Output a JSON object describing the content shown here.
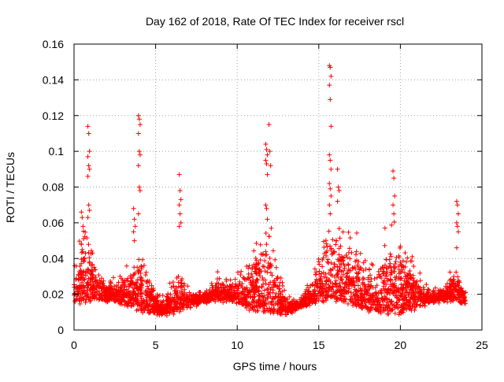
{
  "chart_data": {
    "type": "scatter",
    "title": "Day 162 of 2018, Rate Of TEC Index for receiver rscl",
    "xlabel": "GPS time / hours",
    "ylabel": "ROTI / TECUs",
    "xlim": [
      0,
      25
    ],
    "ylim": [
      0,
      0.16
    ],
    "xticks": [
      0,
      5,
      10,
      15,
      20,
      25
    ],
    "yticks": [
      0,
      0.02,
      0.04,
      0.06,
      0.08,
      0.1,
      0.12,
      0.14,
      0.16
    ],
    "xtick_labels": [
      "0",
      "5",
      "10",
      "15",
      "20",
      "25"
    ],
    "ytick_labels": [
      "0",
      "0.02",
      "0.04",
      "0.06",
      "0.08",
      "0.1",
      "0.12",
      "0.14",
      "0.16"
    ],
    "grid": true,
    "marker": "+",
    "colors": {
      "points": "#ff0000",
      "grid": "#a0a0a0",
      "axes": "#000000"
    },
    "series": [
      {
        "name": "ROTI",
        "description_peaks": "Dense scatter of ROTI values between 0 and 24 h; baseline ~0.005-0.03 TECU/min with isolated spikes",
        "spikes": [
          {
            "x": 0.5,
            "values": [
              0.066,
              0.063,
              0.058,
              0.048,
              0.045
            ]
          },
          {
            "x": 0.9,
            "values": [
              0.114,
              0.11,
              0.1,
              0.097,
              0.092,
              0.09,
              0.086,
              0.07,
              0.067,
              0.063
            ]
          },
          {
            "x": 3.7,
            "values": [
              0.068,
              0.062,
              0.058,
              0.055,
              0.05
            ]
          },
          {
            "x": 4.0,
            "values": [
              0.12,
              0.118,
              0.115,
              0.11,
              0.1,
              0.098,
              0.092,
              0.08,
              0.078,
              0.065
            ]
          },
          {
            "x": 6.5,
            "values": [
              0.087,
              0.078,
              0.073,
              0.07,
              0.065,
              0.06,
              0.058
            ]
          },
          {
            "x": 11.8,
            "values": [
              0.104,
              0.101,
              0.098,
              0.095,
              0.093,
              0.087,
              0.07,
              0.068,
              0.062
            ]
          },
          {
            "x": 12.0,
            "values": [
              0.115,
              0.1,
              0.092
            ]
          },
          {
            "x": 15.7,
            "values": [
              0.148,
              0.147,
              0.142,
              0.137,
              0.129,
              0.114,
              0.098,
              0.095,
              0.09,
              0.082,
              0.079,
              0.075,
              0.07,
              0.065
            ]
          },
          {
            "x": 16.2,
            "values": [
              0.09,
              0.08,
              0.078,
              0.072
            ]
          },
          {
            "x": 19.6,
            "values": [
              0.089,
              0.085,
              0.075,
              0.07,
              0.065
            ]
          },
          {
            "x": 23.5,
            "values": [
              0.072,
              0.07,
              0.065,
              0.06,
              0.058,
              0.055,
              0.046
            ]
          }
        ]
      }
    ]
  }
}
